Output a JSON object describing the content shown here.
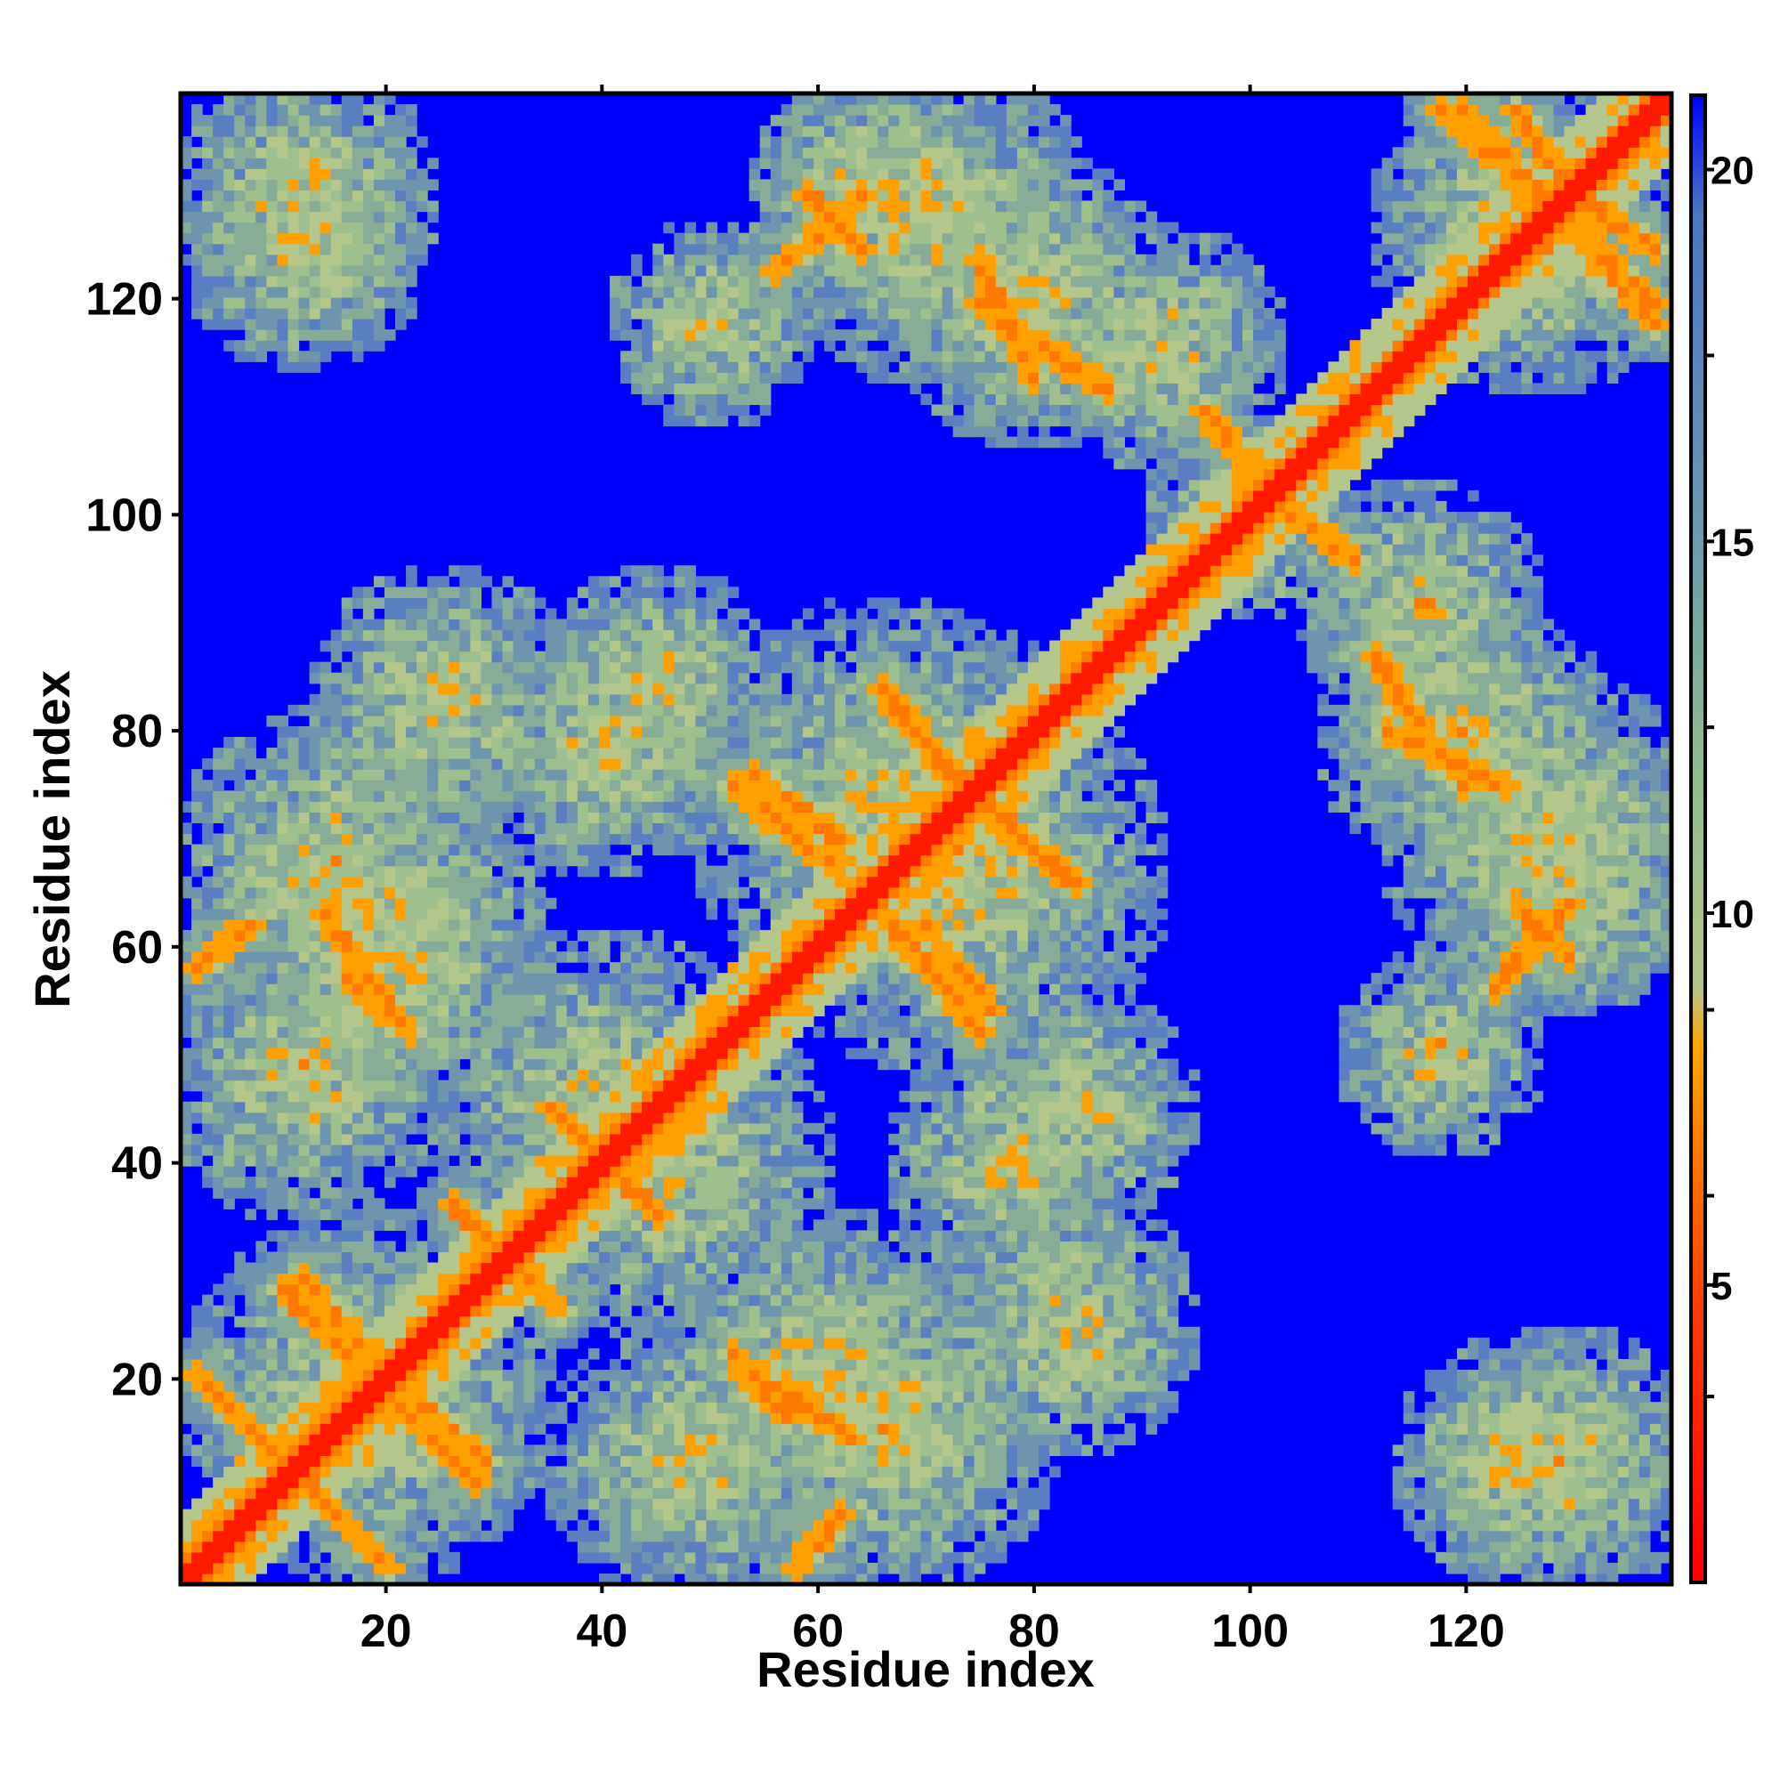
{
  "chart_data": {
    "type": "heatmap",
    "title": "",
    "xlabel": "Residue index",
    "ylabel": "Residue index",
    "xlim": [
      1,
      139
    ],
    "ylim": [
      1,
      139
    ],
    "x_ticks": [
      20,
      40,
      60,
      80,
      100,
      120
    ],
    "y_ticks": [
      20,
      40,
      60,
      80,
      100,
      120
    ],
    "n_residues": 139,
    "colorbar": {
      "range": [
        1,
        21
      ],
      "ticks": [
        5,
        10,
        15,
        20
      ],
      "colors": [
        "#ff0000",
        "#ff8c00",
        "#8fbc8f",
        "#4682b4",
        "#0000ff"
      ],
      "stops": [
        0,
        8,
        10,
        16,
        21
      ]
    },
    "grid": false,
    "legend": "colorbar-right",
    "features": {
      "diagonal_band": "distance < 3 along i = j",
      "contact_lines": [
        {
          "from": [
            2,
            20
          ],
          "to": [
            20,
            2
          ]
        },
        {
          "from": [
            10,
            28
          ],
          "to": [
            27,
            11
          ]
        },
        {
          "from": [
            20,
            20
          ],
          "to": [
            29,
            12
          ]
        },
        {
          "from": [
            26,
            36
          ],
          "to": [
            36,
            26
          ]
        },
        {
          "from": [
            35,
            45
          ],
          "to": [
            45,
            35
          ]
        },
        {
          "from": [
            54,
            76
          ],
          "to": [
            62,
            70
          ]
        },
        {
          "from": [
            67,
            82
          ],
          "to": [
            74,
            75
          ]
        },
        {
          "from": [
            74,
            74
          ],
          "to": [
            84,
            66
          ]
        },
        {
          "from": [
            67,
            62
          ],
          "to": [
            75,
            52
          ]
        },
        {
          "from": [
            53,
            21
          ],
          "to": [
            63,
            14
          ]
        },
        {
          "from": [
            2,
            58
          ],
          "to": [
            7,
            62
          ]
        },
        {
          "from": [
            16,
            57
          ],
          "to": [
            22,
            52
          ]
        },
        {
          "from": [
            59,
            130
          ],
          "to": [
            64,
            125
          ]
        },
        {
          "from": [
            75,
            124
          ],
          "to": [
            80,
            113
          ]
        },
        {
          "from": [
            83,
            114
          ],
          "to": [
            87,
            112
          ]
        },
        {
          "from": [
            100,
            104
          ],
          "to": [
            110,
            96
          ]
        },
        {
          "from": [
            112,
            87
          ],
          "to": [
            120,
            75
          ]
        },
        {
          "from": [
            123,
            56
          ],
          "to": [
            130,
            64
          ]
        },
        {
          "from": [
            120,
            138
          ],
          "to": [
            138,
            118
          ]
        },
        {
          "from": [
            129,
            131
          ],
          "to": [
            138,
            125
          ]
        }
      ],
      "clusters": [
        {
          "center": [
            12,
            130
          ],
          "radius": 13
        },
        {
          "center": [
            70,
            128
          ],
          "radius": 16
        },
        {
          "center": [
            92,
            116
          ],
          "radius": 12
        },
        {
          "center": [
            127,
            125
          ],
          "radius": 14
        },
        {
          "center": [
            15,
            67
          ],
          "radius": 16
        },
        {
          "center": [
            40,
            78
          ],
          "radius": 12
        },
        {
          "center": [
            73,
            67
          ],
          "radius": 20
        },
        {
          "center": [
            45,
            40
          ],
          "radius": 17
        },
        {
          "center": [
            18,
            18
          ],
          "radius": 18
        },
        {
          "center": [
            12,
            48
          ],
          "radius": 14
        },
        {
          "center": [
            60,
            20
          ],
          "radius": 16
        },
        {
          "center": [
            83,
            25
          ],
          "radius": 13
        },
        {
          "center": [
            85,
            45
          ],
          "radius": 11
        },
        {
          "center": [
            120,
            80
          ],
          "radius": 14
        },
        {
          "center": [
            130,
            65
          ],
          "radius": 12
        },
        {
          "center": [
            118,
            50
          ],
          "radius": 10
        },
        {
          "center": [
            125,
            12
          ],
          "radius": 12
        },
        {
          "center": [
            100,
            100
          ],
          "radius": 10
        }
      ]
    }
  }
}
